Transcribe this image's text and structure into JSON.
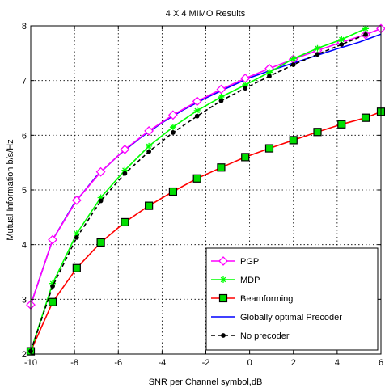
{
  "chart_data": {
    "type": "line",
    "title": "4 X 4 MIMO Results",
    "xlabel": "SNR per Channel symbol,dB",
    "ylabel": "Mutual Information b/s/Hz",
    "xlim": [
      -10,
      6
    ],
    "ylim": [
      2,
      8
    ],
    "xticks": [
      -10,
      -8,
      -6,
      -4,
      -2,
      0,
      2,
      4,
      6
    ],
    "yticks": [
      2,
      3,
      4,
      5,
      6,
      7,
      8
    ],
    "grid": true,
    "legend_position": "bottom-right",
    "series": [
      {
        "name": "PGP",
        "color": "#ff00ff",
        "marker": "diamond",
        "line": "solid",
        "x": [
          -10,
          -9,
          -7.9,
          -6.8,
          -5.7,
          -4.6,
          -3.5,
          -2.4,
          -1.3,
          -0.2,
          0.9,
          2,
          3.1,
          4.2,
          5.3,
          6
        ],
        "y": [
          2.9,
          4.09,
          4.81,
          5.33,
          5.74,
          6.08,
          6.37,
          6.62,
          6.84,
          7.04,
          7.22,
          7.39,
          7.55,
          7.7,
          7.84,
          7.95
        ]
      },
      {
        "name": "MDP",
        "color": "#00ff00",
        "marker": "star",
        "line": "solid",
        "x": [
          -10,
          -9,
          -7.9,
          -6.8,
          -5.7,
          -4.6,
          -3.5,
          -2.4,
          -1.3,
          -0.2,
          0.9,
          2,
          3.1,
          4.2,
          5.3
        ],
        "y": [
          2.05,
          3.29,
          4.2,
          4.86,
          5.36,
          5.8,
          6.15,
          6.45,
          6.7,
          6.92,
          7.15,
          7.4,
          7.59,
          7.75,
          7.95
        ]
      },
      {
        "name": "Beamforming",
        "color": "#ff0000",
        "marker": "square",
        "line": "solid",
        "x": [
          -10,
          -9,
          -7.9,
          -6.8,
          -5.7,
          -4.6,
          -3.5,
          -2.4,
          -1.3,
          -0.2,
          0.9,
          2,
          3.1,
          4.2,
          5.3,
          6
        ],
        "y": [
          2.05,
          2.95,
          3.57,
          4.04,
          4.41,
          4.71,
          4.97,
          5.21,
          5.41,
          5.6,
          5.76,
          5.91,
          6.06,
          6.2,
          6.32,
          6.43
        ]
      },
      {
        "name": "Globally optimal Precoder",
        "color": "#0000ff",
        "marker": "none",
        "line": "solid",
        "x": [
          -10,
          -9,
          -8,
          -7,
          -6,
          -5,
          -4,
          -3,
          -2,
          -1,
          0,
          1,
          2,
          3,
          4,
          5,
          6
        ],
        "y": [
          2.9,
          4.09,
          4.76,
          5.25,
          5.63,
          5.95,
          6.23,
          6.47,
          6.68,
          6.87,
          7.05,
          7.19,
          7.32,
          7.45,
          7.58,
          7.7,
          7.85
        ]
      },
      {
        "name": "No precoder",
        "color": "#000000",
        "marker": "dot",
        "line": "dashed",
        "x": [
          -10,
          -9,
          -7.9,
          -6.8,
          -5.7,
          -4.6,
          -3.5,
          -2.4,
          -1.3,
          -0.2,
          0.9,
          2,
          3.1,
          4.2,
          5.3
        ],
        "y": [
          2.05,
          3.24,
          4.13,
          4.8,
          5.3,
          5.7,
          6.05,
          6.35,
          6.63,
          6.86,
          7.08,
          7.29,
          7.48,
          7.66,
          7.84
        ]
      }
    ]
  }
}
